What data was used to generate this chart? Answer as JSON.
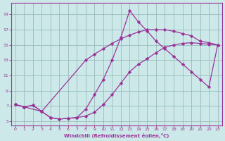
{
  "background_color": "#cce8e8",
  "line_color": "#993399",
  "grid_color": "#99bbbb",
  "xlabel": "Windchill (Refroidissement éolien,°C)",
  "xlabel_color": "#993399",
  "xtick_color": "#993399",
  "ytick_color": "#993399",
  "xlim": [
    -0.5,
    23.5
  ],
  "ylim": [
    4.5,
    20.5
  ],
  "xticks": [
    0,
    1,
    2,
    3,
    4,
    5,
    6,
    7,
    8,
    9,
    10,
    11,
    12,
    13,
    14,
    15,
    16,
    17,
    18,
    19,
    20,
    21,
    22,
    23
  ],
  "yticks": [
    5,
    7,
    9,
    11,
    13,
    15,
    17,
    19
  ],
  "line1_x": [
    0,
    1,
    2,
    3,
    4,
    5,
    6,
    7,
    8,
    9,
    10,
    11,
    12,
    13,
    14,
    15,
    16,
    17,
    18,
    19,
    20,
    21,
    22,
    23
  ],
  "line1_y": [
    7.2,
    6.9,
    7.1,
    6.3,
    5.5,
    5.3,
    5.4,
    5.5,
    5.7,
    6.2,
    7.2,
    8.5,
    10.0,
    11.5,
    12.5,
    13.2,
    14.0,
    14.7,
    15.0,
    15.2,
    15.3,
    15.2,
    15.1,
    15.0
  ],
  "line2_x": [
    0,
    1,
    3,
    4,
    5,
    6,
    7,
    8,
    9,
    10,
    11,
    12,
    13,
    14,
    15,
    16,
    17,
    18,
    19,
    20,
    21,
    22,
    23
  ],
  "line2_y": [
    7.2,
    6.9,
    6.3,
    5.5,
    5.3,
    5.4,
    5.5,
    6.6,
    8.5,
    10.5,
    13.0,
    16.0,
    19.5,
    18.0,
    16.8,
    15.5,
    14.5,
    13.5,
    12.5,
    11.5,
    10.5,
    9.5,
    15.0
  ],
  "line3_x": [
    0,
    1,
    2,
    3,
    8,
    9,
    10,
    11,
    12,
    13,
    14,
    15,
    16,
    17,
    18,
    19,
    20,
    21,
    22,
    23
  ],
  "line3_y": [
    7.2,
    6.9,
    7.1,
    6.3,
    13.0,
    13.8,
    14.5,
    15.2,
    15.8,
    16.3,
    16.7,
    17.0,
    17.0,
    17.0,
    16.8,
    16.5,
    16.2,
    15.5,
    15.3,
    15.0
  ]
}
